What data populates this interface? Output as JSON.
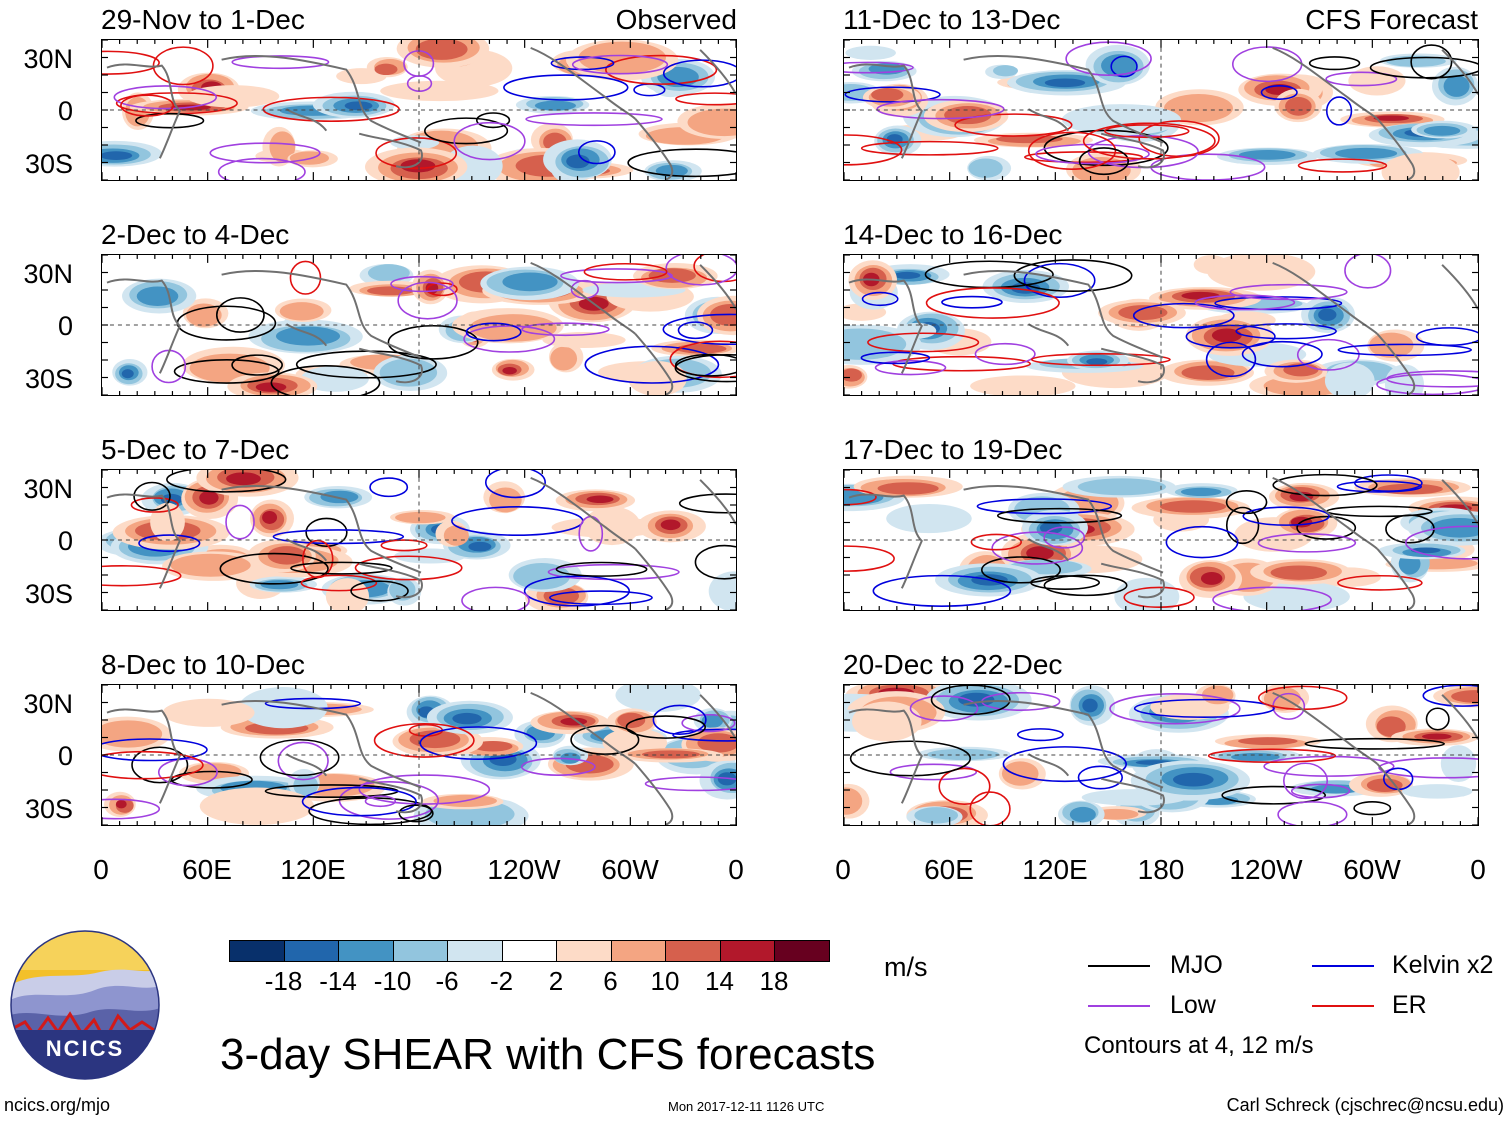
{
  "title": "3-day SHEAR with CFS forecasts",
  "left_header": "Observed",
  "right_header": "CFS Forecast",
  "units": "m/s",
  "colorbar": {
    "labels": [
      "-18",
      "-14",
      "-10",
      "-6",
      "-2",
      "2",
      "6",
      "10",
      "14",
      "18"
    ],
    "colors": [
      "#08306b",
      "#2166ac",
      "#4393c3",
      "#92c5de",
      "#d1e5f0",
      "#ffffff",
      "#fddbc7",
      "#f4a582",
      "#d6604d",
      "#b2182b",
      "#67001f"
    ]
  },
  "legend": {
    "mjo": "MJO",
    "kelvin": "Kelvin x2",
    "low": "Low",
    "er": "ER",
    "contours_note": "Contours at 4, 12 m/s",
    "colors": {
      "mjo": "#000000",
      "kelvin": "#0000dd",
      "low": "#a040e0",
      "er": "#e01010"
    }
  },
  "logo_text": "NCICS",
  "footer": {
    "website": "ncics.org/mjo",
    "timestamp": "Mon 2017-12-11 1126 UTC",
    "author": "Carl Schreck (cjschrec@ncsu.edu)"
  },
  "chart_data": {
    "type": "heatmap",
    "variable": "vertical wind shear",
    "units": "m/s",
    "x_tick_labels": [
      "0",
      "60E",
      "120E",
      "180",
      "120W",
      "60W",
      "0"
    ],
    "y_tick_labels": [
      "30N",
      "0",
      "30S"
    ],
    "panels": [
      {
        "label": "29-Nov to 1-Dec",
        "column": "Observed"
      },
      {
        "label": "2-Dec to 4-Dec",
        "column": "Observed"
      },
      {
        "label": "5-Dec to 7-Dec",
        "column": "Observed"
      },
      {
        "label": "8-Dec to 10-Dec",
        "column": "Observed"
      },
      {
        "label": "11-Dec to 13-Dec",
        "column": "CFS Forecast"
      },
      {
        "label": "14-Dec to 16-Dec",
        "column": "CFS Forecast"
      },
      {
        "label": "17-Dec to 19-Dec",
        "column": "CFS Forecast"
      },
      {
        "label": "20-Dec to 22-Dec",
        "column": "CFS Forecast"
      }
    ],
    "contour_levels": [
      4,
      12
    ]
  }
}
